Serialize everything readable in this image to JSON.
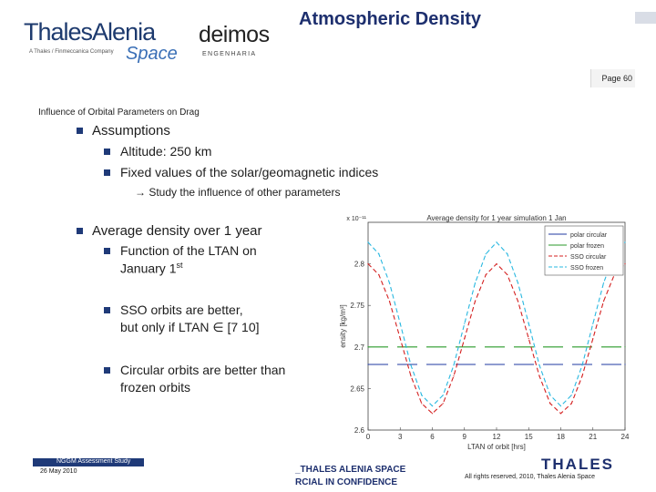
{
  "header": {
    "logo_thales_alenia": "ThalesAlenia",
    "logo_thales_alenia_tagline": "A Thales / Finmeccanica Company",
    "logo_thales_alenia_space": "Space",
    "logo_deimos": "deimos",
    "logo_deimos_sub": "ENGENHARIA",
    "title": "Atmospheric Density",
    "page_label": "Page 60"
  },
  "subtitle": "Influence of Orbital Parameters on Drag",
  "content": {
    "assumptions": "Assumptions",
    "altitude": "Altitude: 250 km",
    "fixed_values": "Fixed values of the solar/geomagnetic indices",
    "study_note": "→ Study the influence of other parameters",
    "average_density": "Average density over 1 year",
    "function_ltan_1": "Function of the LTAN on",
    "function_ltan_2": "January 1",
    "function_ltan_sup": "st",
    "sso_1": "SSO orbits are better,",
    "sso_2": "but only if LTAN ∈ [7 10]",
    "circular_1": "Circular orbits are better than",
    "circular_2": "frozen orbits"
  },
  "footer": {
    "study": "NGGM Assessment Study",
    "date": "26 May 2010",
    "mid_line1": "_THALES ALENIA SPACE",
    "mid_line2": "RCIAL IN CONFIDENCE",
    "thales_logo": "THALES",
    "rights": "All rights reserved, 2010, Thales Alenia Space"
  },
  "colors": {
    "brand_blue": "#1d2f6e",
    "bullet_blue": "#1f3a78",
    "polar_circular": "#1f3aa0",
    "polar_frozen": "#2a9a2a",
    "sso_circular": "#d42020",
    "sso_frozen": "#29b8e0"
  },
  "chart_data": {
    "type": "line",
    "title": "Average density for 1 year simulation 1 Jan",
    "xlabel": "LTAN of orbit [hrs]",
    "ylabel": "ensity [kg/m³]",
    "y_multiplier_label": "x 10⁻¹¹",
    "xlim": [
      0,
      24
    ],
    "ylim": [
      2.6,
      2.85
    ],
    "x_ticks": [
      "0",
      "3",
      "6",
      "9",
      "12",
      "15",
      "18",
      "21",
      "24"
    ],
    "y_ticks": [
      "2.6",
      "2.65",
      "2.7",
      "2.75",
      "2.8"
    ],
    "legend_position": "top-right",
    "series": [
      {
        "name": "polar circular",
        "color": "#1f3aa0",
        "dash": "solid",
        "x": [
          0,
          24
        ],
        "y": [
          2.679,
          2.679
        ]
      },
      {
        "name": "polar frozen",
        "color": "#2a9a2a",
        "dash": "solid",
        "x": [
          0,
          24
        ],
        "y": [
          2.7,
          2.7
        ]
      },
      {
        "name": "SSO circular",
        "color": "#d42020",
        "dash": "dashed",
        "x": [
          0,
          1,
          2,
          3,
          4,
          5,
          6,
          7,
          8,
          9,
          10,
          11,
          12,
          13,
          14,
          15,
          16,
          17,
          18,
          19,
          20,
          21,
          22,
          23,
          24
        ],
        "y": [
          2.8,
          2.787,
          2.755,
          2.71,
          2.665,
          2.632,
          2.62,
          2.632,
          2.665,
          2.71,
          2.755,
          2.787,
          2.8,
          2.787,
          2.755,
          2.71,
          2.665,
          2.632,
          2.62,
          2.632,
          2.665,
          2.71,
          2.755,
          2.787,
          2.8
        ]
      },
      {
        "name": "SSO frozen",
        "color": "#29b8e0",
        "dash": "dashed",
        "x": [
          0,
          1,
          2,
          3,
          4,
          5,
          6,
          7,
          8,
          9,
          10,
          11,
          12,
          13,
          14,
          15,
          16,
          17,
          18,
          19,
          20,
          21,
          22,
          23,
          24
        ],
        "y": [
          2.826,
          2.812,
          2.777,
          2.728,
          2.678,
          2.642,
          2.629,
          2.642,
          2.678,
          2.728,
          2.777,
          2.812,
          2.826,
          2.812,
          2.777,
          2.728,
          2.678,
          2.642,
          2.629,
          2.642,
          2.678,
          2.728,
          2.777,
          2.812,
          2.826
        ]
      }
    ]
  }
}
